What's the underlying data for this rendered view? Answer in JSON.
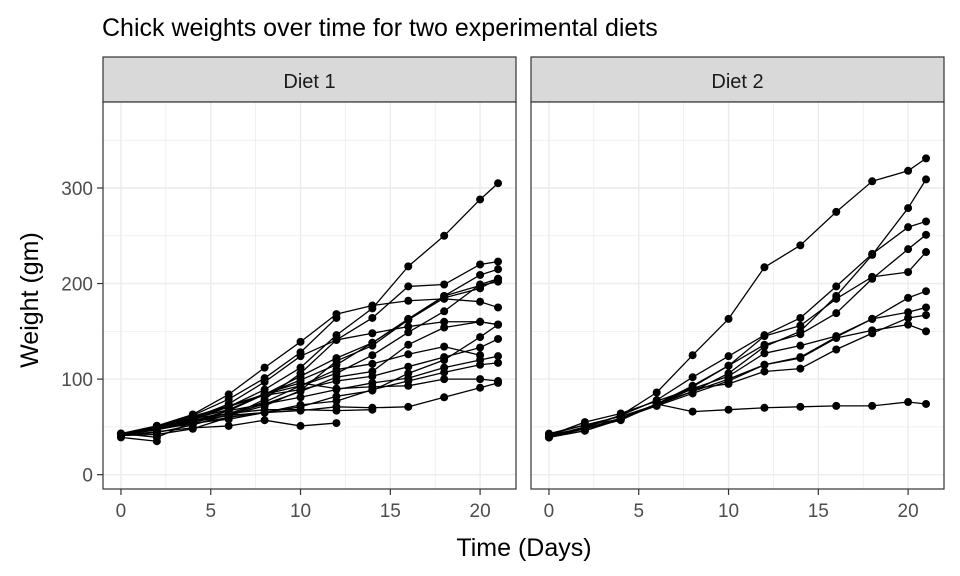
{
  "chart_data": {
    "type": "line",
    "title": "Chick weights over time for two experimental diets",
    "xlabel": "Time (Days)",
    "ylabel": "Weight (gm)",
    "xlim": [
      -1,
      22
    ],
    "ylim": [
      -15,
      390
    ],
    "x_ticks": [
      0,
      5,
      10,
      15,
      20
    ],
    "y_ticks": [
      0,
      100,
      200,
      300
    ],
    "grid": true,
    "colors": {
      "series": "#000000",
      "panel_border": "#333333",
      "strip_fill": "#d9d9d9",
      "grid": "#ebebeb"
    },
    "panels": [
      {
        "name": "Diet 1",
        "series": [
          {
            "x": [
              0,
              2,
              4,
              6,
              8,
              10,
              12,
              14,
              16,
              18,
              20,
              21
            ],
            "y": [
              42,
              51,
              59,
              64,
              76,
              93,
              106,
              125,
              149,
              171,
              199,
              205
            ]
          },
          {
            "x": [
              0,
              2,
              4,
              6,
              8,
              10,
              12,
              14,
              16,
              18,
              20,
              21
            ],
            "y": [
              40,
              49,
              58,
              72,
              84,
              103,
              122,
              138,
              162,
              187,
              209,
              215
            ]
          },
          {
            "x": [
              0,
              2,
              4,
              6,
              8,
              10,
              12,
              14,
              16,
              18,
              20,
              21
            ],
            "y": [
              43,
              39,
              55,
              67,
              84,
              99,
              115,
              138,
              163,
              187,
              198,
              202
            ]
          },
          {
            "x": [
              0,
              2,
              4,
              6,
              8,
              10,
              12,
              14,
              16,
              18,
              20,
              21
            ],
            "y": [
              42,
              49,
              56,
              67,
              74,
              87,
              102,
              108,
              136,
              154,
              160,
              157
            ]
          },
          {
            "x": [
              0,
              2,
              4,
              6,
              8,
              10,
              12,
              14,
              16,
              18,
              20,
              21
            ],
            "y": [
              41,
              42,
              48,
              60,
              79,
              106,
              141,
              164,
              197,
              199,
              220,
              223
            ]
          },
          {
            "x": [
              0,
              2,
              4,
              6,
              8,
              10,
              12,
              14,
              16,
              18,
              20,
              21
            ],
            "y": [
              41,
              49,
              59,
              74,
              97,
              124,
              141,
              148,
              155,
              160,
              160,
              157
            ]
          },
          {
            "x": [
              0,
              2,
              4,
              6,
              8,
              10,
              12,
              14,
              16,
              18,
              20,
              21
            ],
            "y": [
              41,
              49,
              57,
              71,
              89,
              112,
              146,
              174,
              218,
              250,
              288,
              305
            ]
          },
          {
            "x": [
              0,
              2,
              4,
              6,
              8,
              10,
              12,
              14,
              16,
              18,
              20
            ],
            "y": [
              42,
              50,
              61,
              71,
              84,
              93,
              110,
              116,
              126,
              134,
              125
            ]
          },
          {
            "x": [
              0,
              2,
              4,
              6,
              8,
              10,
              12,
              14,
              16,
              18,
              20,
              21
            ],
            "y": [
              42,
              51,
              59,
              68,
              85,
              96,
              90,
              92,
              93,
              100,
              100,
              98
            ]
          },
          {
            "x": [
              0,
              2,
              4,
              6,
              8,
              10,
              12,
              14,
              16,
              18,
              20,
              21
            ],
            "y": [
              41,
              44,
              52,
              63,
              74,
              81,
              89,
              96,
              101,
              112,
              120,
              124
            ]
          },
          {
            "x": [
              0,
              2,
              4,
              6,
              8,
              10,
              12,
              14,
              16,
              18,
              20,
              21
            ],
            "y": [
              43,
              51,
              63,
              84,
              112,
              139,
              168,
              177,
              182,
              184,
              181,
              175
            ]
          },
          {
            "x": [
              0,
              2,
              4,
              6,
              8,
              10,
              12,
              14,
              16,
              18,
              20,
              21
            ],
            "y": [
              41,
              49,
              56,
              62,
              72,
              88,
              119,
              135,
              162,
              185,
              195,
              205
            ]
          },
          {
            "x": [
              0,
              2,
              4,
              6,
              8,
              10,
              12,
              14,
              16,
              18,
              20,
              21
            ],
            "y": [
              41,
              48,
              53,
              60,
              65,
              67,
              71,
              70,
              71,
              81,
              91,
              96
            ]
          },
          {
            "x": [
              0,
              2,
              4,
              6,
              8,
              10,
              12
            ],
            "y": [
              41,
              49,
              62,
              79,
              101,
              128,
              164
            ]
          },
          {
            "x": [
              0,
              2,
              4,
              6,
              8,
              10,
              12,
              14
            ],
            "y": [
              41,
              49,
              56,
              64,
              68,
              68,
              67,
              68
            ]
          },
          {
            "x": [
              0,
              2,
              4,
              6,
              8,
              10,
              12
            ],
            "y": [
              41,
              45,
              49,
              51,
              57,
              51,
              54
            ]
          },
          {
            "x": [
              0,
              2,
              4,
              6,
              8,
              10,
              12,
              14,
              16,
              18,
              20,
              21
            ],
            "y": [
              42,
              51,
              61,
              72,
              83,
              89,
              98,
              103,
              113,
              123,
              133,
              142
            ]
          },
          {
            "x": [
              0,
              2
            ],
            "y": [
              39,
              35
            ]
          },
          {
            "x": [
              0,
              2,
              4,
              6,
              8,
              10,
              12,
              14,
              16,
              18,
              20,
              21
            ],
            "y": [
              43,
              48,
              55,
              62,
              65,
              71,
              82,
              88,
              106,
              120,
              144,
              157
            ]
          },
          {
            "x": [
              0,
              2,
              4,
              6,
              8,
              10,
              12,
              14,
              16,
              18,
              20,
              21
            ],
            "y": [
              41,
              47,
              54,
              58,
              65,
              73,
              77,
              89,
              98,
              107,
              115,
              117
            ]
          }
        ]
      },
      {
        "name": "Diet 2",
        "series": [
          {
            "x": [
              0,
              2,
              4,
              6,
              8,
              10,
              12,
              14,
              16,
              18,
              20,
              21
            ],
            "y": [
              40,
              50,
              62,
              86,
              125,
              163,
              217,
              240,
              275,
              307,
              318,
              331
            ]
          },
          {
            "x": [
              0,
              2,
              4,
              6,
              8,
              10,
              12,
              14,
              16,
              18,
              20,
              21
            ],
            "y": [
              41,
              55,
              64,
              77,
              90,
              95,
              108,
              111,
              131,
              148,
              164,
              167
            ]
          },
          {
            "x": [
              0,
              2,
              4,
              6,
              8,
              10,
              12,
              14,
              16,
              18,
              20,
              21
            ],
            "y": [
              43,
              52,
              61,
              73,
              90,
              103,
              127,
              135,
              145,
              163,
              170,
              175
            ]
          },
          {
            "x": [
              0,
              2,
              4,
              6,
              8,
              10,
              12,
              14,
              16,
              18,
              20,
              21
            ],
            "y": [
              42,
              52,
              58,
              74,
              66,
              68,
              70,
              71,
              72,
              72,
              76,
              74
            ]
          },
          {
            "x": [
              0,
              2,
              4,
              6,
              8,
              10,
              12,
              14,
              16,
              18,
              20,
              21
            ],
            "y": [
              40,
              49,
              62,
              78,
              102,
              124,
              146,
              164,
              197,
              231,
              259,
              265
            ]
          },
          {
            "x": [
              0,
              2,
              4,
              6,
              8,
              10,
              12,
              14,
              16,
              18,
              20,
              21
            ],
            "y": [
              42,
              48,
              57,
              74,
              93,
              114,
              136,
              147,
              169,
              205,
              236,
              251
            ]
          },
          {
            "x": [
              0,
              2,
              4,
              6,
              8,
              10,
              12,
              14,
              16,
              18,
              20,
              21
            ],
            "y": [
              39,
              46,
              58,
              73,
              87,
              100,
              115,
              123,
              144,
              163,
              185,
              192
            ]
          },
          {
            "x": [
              0,
              2,
              4,
              6,
              8,
              10,
              12,
              14,
              16,
              18,
              20,
              21
            ],
            "y": [
              39,
              46,
              58,
              73,
              92,
              114,
              145,
              156,
              184,
              207,
              212,
              233
            ]
          },
          {
            "x": [
              0,
              2,
              4,
              6,
              8,
              10,
              12,
              14,
              16,
              18,
              20,
              21
            ],
            "y": [
              39,
              48,
              59,
              74,
              87,
              106,
              134,
              150,
              187,
              230,
              279,
              309
            ]
          },
          {
            "x": [
              0,
              2,
              4,
              6,
              8,
              10,
              12,
              14,
              16,
              18,
              20,
              21
            ],
            "y": [
              42,
              48,
              59,
              72,
              85,
              98,
              115,
              122,
              143,
              151,
              157,
              150
            ]
          }
        ]
      }
    ]
  }
}
